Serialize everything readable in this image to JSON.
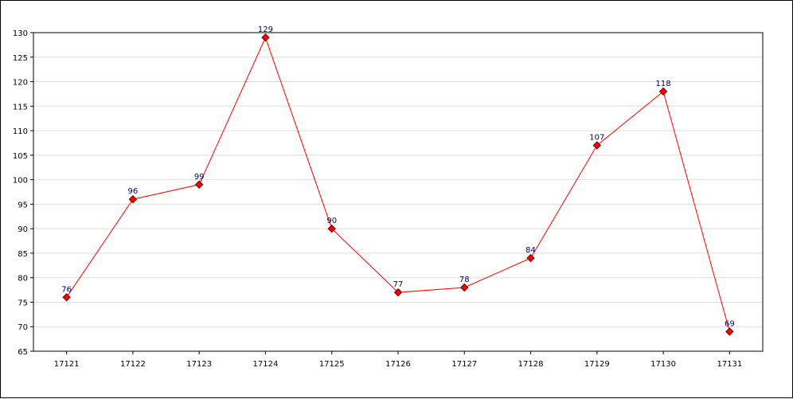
{
  "chart_data": {
    "type": "line",
    "title": "",
    "xlabel": "",
    "ylabel": "",
    "categories": [
      "17121",
      "17122",
      "17123",
      "17124",
      "17125",
      "17126",
      "17127",
      "17128",
      "17129",
      "17130",
      "17131"
    ],
    "series": [
      {
        "values": [
          76,
          96,
          99,
          129,
          90,
          77,
          78,
          84,
          107,
          118,
          69
        ]
      }
    ],
    "ylim": [
      65,
      130
    ],
    "yticks": [
      65,
      70,
      75,
      80,
      85,
      90,
      95,
      100,
      105,
      110,
      115,
      120,
      125,
      130
    ],
    "grid": "horizontal",
    "legend": "none",
    "data_labels": true,
    "colors": {
      "line": "#ff0000",
      "marker_fill": "#ff0000",
      "marker_stroke": "#660000",
      "data_label": "#000066",
      "grid": "#dddddd",
      "axis": "#000000"
    }
  }
}
